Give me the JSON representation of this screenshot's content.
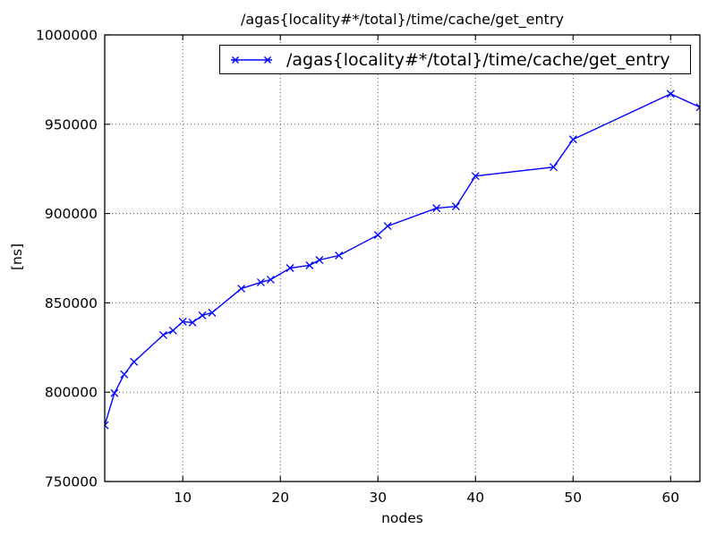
{
  "chart_data": {
    "type": "line",
    "title": "/agas{locality#*/total}/time/cache/get_entry",
    "xlabel": "nodes",
    "ylabel": "[ns]",
    "xlim": [
      2,
      63
    ],
    "ylim": [
      750000,
      1000000
    ],
    "xticks": [
      10,
      20,
      30,
      40,
      50,
      60
    ],
    "xtick_labels": [
      "10",
      "20",
      "30",
      "40",
      "50",
      "60"
    ],
    "yticks": [
      750000,
      800000,
      850000,
      900000,
      950000,
      1000000
    ],
    "ytick_labels": [
      "750000",
      "800000",
      "850000",
      "900000",
      "950000",
      "1000000"
    ],
    "grid": true,
    "grid_style": "dotted",
    "legend": {
      "position": "upper center",
      "entries": [
        {
          "label": "/agas{locality#*/total}/time/cache/get_entry",
          "color": "#0000ff",
          "marker": "x"
        }
      ]
    },
    "series": [
      {
        "name": "/agas{locality#*/total}/time/cache/get_entry",
        "color": "#0000ff",
        "marker": "x",
        "x": [
          2,
          3,
          4,
          5,
          8,
          9,
          10,
          11,
          12,
          13,
          16,
          18,
          19,
          21,
          23,
          24,
          26,
          30,
          31,
          36,
          38,
          40,
          48,
          50,
          60,
          63
        ],
        "y": [
          781500,
          799500,
          810000,
          817000,
          832000,
          834500,
          839500,
          839000,
          843000,
          844500,
          858000,
          861500,
          863000,
          869500,
          871000,
          874000,
          876500,
          888000,
          893000,
          903000,
          904000,
          921000,
          926000,
          941500,
          967000,
          959500
        ]
      }
    ]
  },
  "colors": {
    "line": "#0000ff",
    "grid": "#000000",
    "spine": "#000000",
    "background": "#ffffff"
  }
}
